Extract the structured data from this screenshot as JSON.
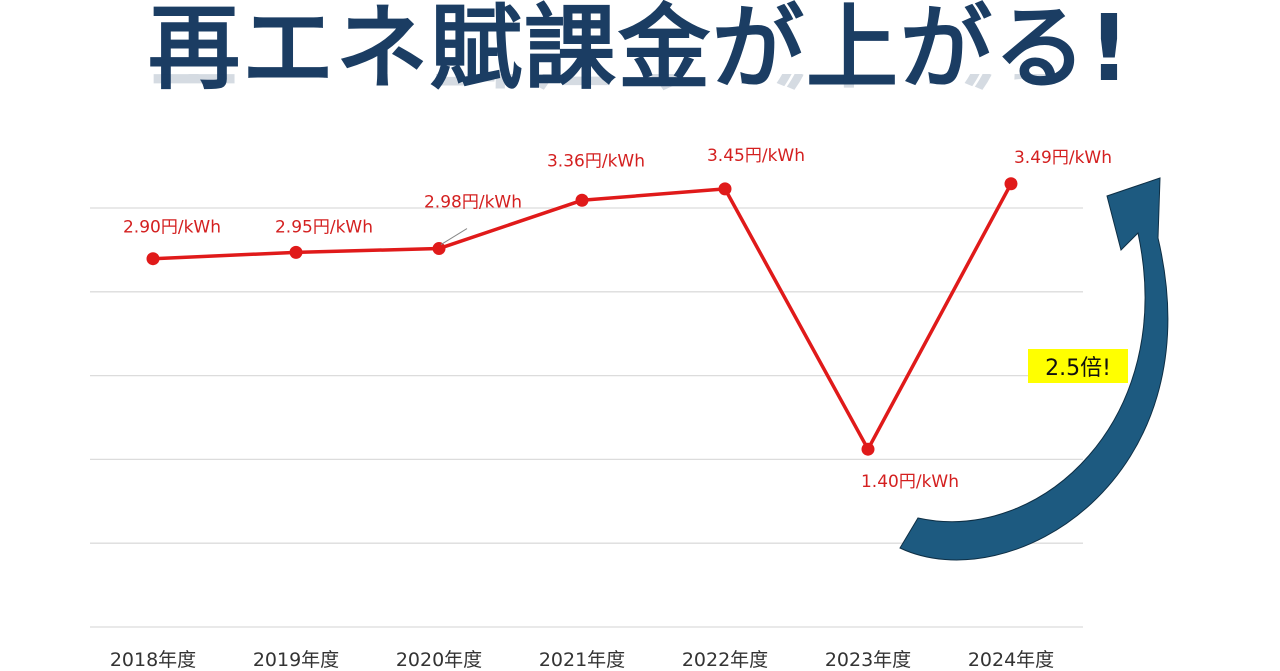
{
  "title": "再エネ賦課金が上がる!",
  "chart_data": {
    "type": "line",
    "title": "再エネ賦課金が上がる!",
    "categories": [
      "2018年度",
      "2019年度",
      "2020年度",
      "2021年度",
      "2022年度",
      "2023年度",
      "2024年度"
    ],
    "series": [
      {
        "values": [
          2.9,
          2.95,
          2.98,
          3.36,
          3.45,
          1.4,
          3.49
        ],
        "color": "#e01a1a"
      }
    ],
    "data_labels": [
      "2.90円/kWh",
      "2.95円/kWh",
      "2.98円/kWh",
      "3.36円/kWh",
      "3.45円/kWh",
      "1.40円/kWh",
      "3.49円/kWh"
    ],
    "xlabel": "",
    "ylabel": "",
    "ylim": [
      0,
      3.95
    ],
    "grid": true,
    "annotation": {
      "text": "2.5倍!",
      "highlight_color": "#ffff00",
      "arrow_color": "#1d5a80"
    }
  }
}
